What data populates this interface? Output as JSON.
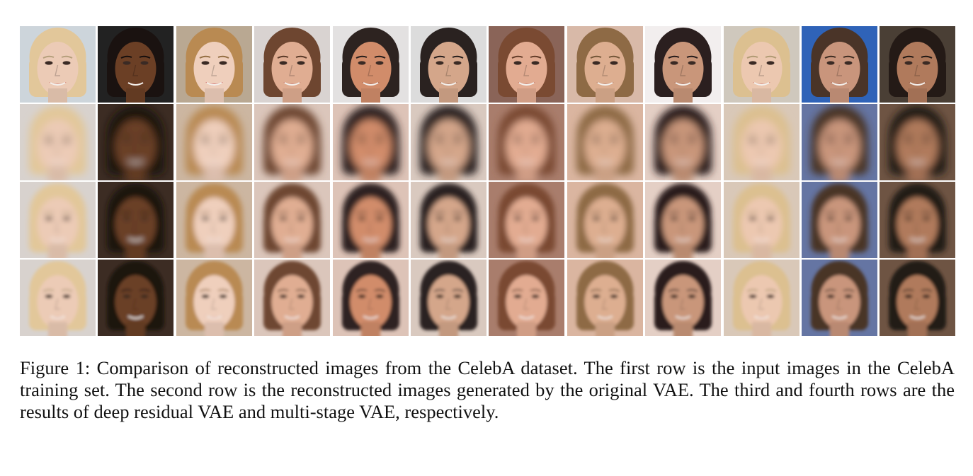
{
  "figure": {
    "rows": [
      {
        "name": "input images",
        "sharpness": "sharp"
      },
      {
        "name": "original VAE",
        "sharpness": "very-blurry"
      },
      {
        "name": "deep residual VAE",
        "sharpness": "blurry"
      },
      {
        "name": "multi-stage VAE",
        "sharpness": "soft"
      }
    ],
    "columns": [
      {
        "bg": "#cdd5db",
        "skin": "#eccbb6",
        "hair": "#e2c79a",
        "lip": "#c45c5c"
      },
      {
        "bg": "#222222",
        "skin": "#6b3f25",
        "hair": "#1a1210",
        "lip": "#7a3a30"
      },
      {
        "bg": "#b9a892",
        "skin": "#efcfbc",
        "hair": "#b98a52",
        "lip": "#b3202e"
      },
      {
        "bg": "#d9d3d1",
        "skin": "#e0ad92",
        "hair": "#6e4630",
        "lip": "#b85f62"
      },
      {
        "bg": "#e3e1e1",
        "skin": "#d18c6a",
        "hair": "#2d2320",
        "lip": "#8e4a42"
      },
      {
        "bg": "#dcdcdc",
        "skin": "#d4a68a",
        "hair": "#2a2220",
        "lip": "#945a50"
      },
      {
        "bg": "#8a6458",
        "skin": "#e2ab91",
        "hair": "#7a4a32",
        "lip": "#b8605c"
      },
      {
        "bg": "#d8b9a8",
        "skin": "#ddae90",
        "hair": "#8e6a45",
        "lip": "#a5665a"
      },
      {
        "bg": "#f2eeee",
        "skin": "#c9967a",
        "hair": "#2b1f1f",
        "lip": "#9b5a55"
      },
      {
        "bg": "#cfc8bd",
        "skin": "#ecc8b0",
        "hair": "#dcc090",
        "lip": "#c45a56"
      },
      {
        "bg": "#2f63b8",
        "skin": "#c9957c",
        "hair": "#4a3428",
        "lip": "#9c4f4a"
      },
      {
        "bg": "#4a3f35",
        "skin": "#b07a5c",
        "hair": "#241a16",
        "lip": "#8c4a40"
      }
    ]
  },
  "caption": {
    "text": "Figure 1: Comparison of reconstructed images from the CelebA dataset. The first row is the input images in the CelebA training set. The second row is the reconstructed images generated by the original VAE. The third and fourth rows are the results of deep residual VAE and multi-stage VAE, respectively."
  }
}
